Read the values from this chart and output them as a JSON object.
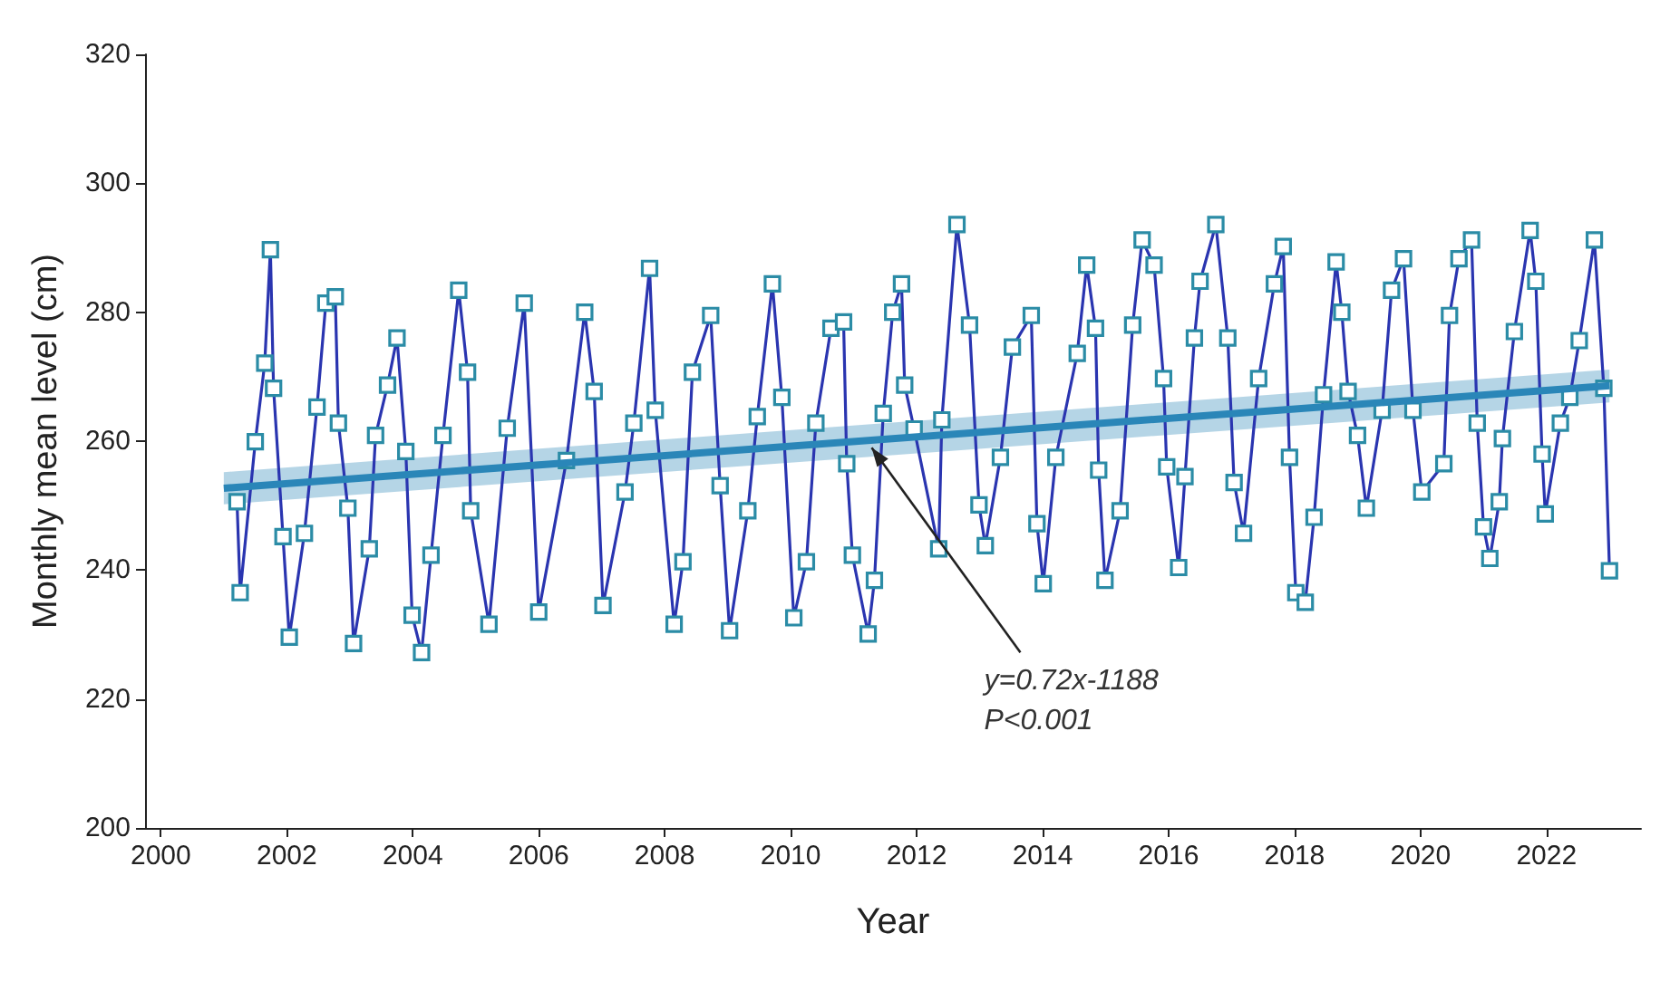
{
  "chart_data": {
    "type": "line",
    "xlabel": "Year",
    "ylabel": "Monthly mean level (cm)",
    "xlim": [
      1999.75,
      2023.5
    ],
    "xticks": [
      2000,
      2002,
      2004,
      2006,
      2008,
      2010,
      2012,
      2014,
      2016,
      2018,
      2020,
      2022
    ],
    "ylim": [
      200,
      320
    ],
    "yticks": [
      200,
      220,
      240,
      260,
      280,
      300,
      320
    ],
    "grid": false,
    "marker": "square",
    "line_style": "solid",
    "series": [
      {
        "color": "#2a35b0",
        "x": [
          2001.21,
          2001.26,
          2001.5,
          2001.65,
          2001.74,
          2001.79,
          2001.94,
          2002.04,
          2002.28,
          2002.48,
          2002.62,
          2002.77,
          2002.82,
          2002.97,
          2003.06,
          2003.31,
          2003.41,
          2003.6,
          2003.75,
          2003.89,
          2003.99,
          2004.14,
          2004.29,
          2004.48,
          2004.73,
          2004.87,
          2004.92,
          2005.21,
          2005.5,
          2005.77,
          2006.0,
          2006.44,
          2006.73,
          2006.88,
          2007.02,
          2007.37,
          2007.51,
          2007.76,
          2007.85,
          2008.15,
          2008.29,
          2008.44,
          2008.73,
          2008.88,
          2009.03,
          2009.32,
          2009.47,
          2009.71,
          2009.86,
          2010.05,
          2010.25,
          2010.4,
          2010.64,
          2010.84,
          2010.89,
          2010.98,
          2011.23,
          2011.33,
          2011.47,
          2011.62,
          2011.76,
          2011.81,
          2011.96,
          2012.35,
          2012.4,
          2012.64,
          2012.84,
          2012.99,
          2013.09,
          2013.33,
          2013.52,
          2013.82,
          2013.91,
          2014.01,
          2014.21,
          2014.55,
          2014.7,
          2014.84,
          2014.89,
          2014.99,
          2015.23,
          2015.43,
          2015.58,
          2015.77,
          2015.92,
          2015.97,
          2016.16,
          2016.26,
          2016.41,
          2016.5,
          2016.75,
          2016.94,
          2017.04,
          2017.19,
          2017.43,
          2017.68,
          2017.82,
          2017.92,
          2018.02,
          2018.17,
          2018.31,
          2018.46,
          2018.66,
          2018.75,
          2018.85,
          2019.0,
          2019.14,
          2019.39,
          2019.54,
          2019.73,
          2019.88,
          2020.02,
          2020.37,
          2020.46,
          2020.61,
          2020.81,
          2020.9,
          2021.0,
          2021.1,
          2021.25,
          2021.3,
          2021.49,
          2021.74,
          2021.83,
          2021.93,
          2021.98,
          2022.22,
          2022.37,
          2022.52,
          2022.76,
          2022.91,
          2023.0
        ],
        "values": [
          250.6,
          236.5,
          259.9,
          272.1,
          289.7,
          268.2,
          245.2,
          229.6,
          245.7,
          265.3,
          281.4,
          282.4,
          262.8,
          249.6,
          228.6,
          243.3,
          260.9,
          268.7,
          276,
          258.4,
          233,
          227.2,
          242.3,
          260.9,
          283.4,
          270.7,
          249.2,
          231.6,
          262,
          281.4,
          233.5,
          257,
          280,
          267.7,
          234.5,
          252.1,
          262.8,
          286.8,
          264.8,
          231.6,
          241.3,
          270.7,
          279.5,
          253.1,
          230.6,
          249.2,
          263.8,
          284.4,
          266.8,
          232.6,
          241.3,
          262.8,
          277.5,
          278.5,
          256.5,
          242.3,
          230.1,
          238.4,
          264.3,
          280,
          284.4,
          268.7,
          261.9,
          243.3,
          263.3,
          293.6,
          278,
          250.1,
          243.8,
          257.5,
          274.6,
          279.5,
          247.2,
          237.9,
          257.5,
          273.6,
          287.3,
          277.5,
          255.5,
          238.4,
          249.2,
          278,
          291.2,
          287.3,
          269.7,
          256,
          240.4,
          254.5,
          276,
          284.8,
          293.6,
          276,
          253.6,
          245.7,
          269.7,
          284.4,
          290.2,
          257.5,
          236.5,
          235,
          248.2,
          267.2,
          287.8,
          280,
          267.7,
          260.9,
          249.6,
          264.8,
          283.4,
          288.3,
          264.8,
          252.1,
          256.5,
          279.5,
          288.3,
          291.2,
          262.8,
          246.7,
          241.8,
          250.6,
          260.4,
          277,
          292.7,
          284.8,
          258,
          248.7,
          262.8,
          266.8,
          275.6,
          291.2,
          268.2,
          239.9
        ]
      },
      {
        "type": "line",
        "color": "#2a86b8",
        "marker": "none",
        "x": [
          2001,
          2023
        ],
        "values": [
          252.7,
          268.6
        ],
        "lower": [
          250.2,
          266.0
        ],
        "upper": [
          255.2,
          271.1
        ]
      }
    ],
    "annotations": [
      {
        "text": "y=0.72x-1188",
        "x": 2011.2,
        "y": 260.1
      },
      "P<0.001"
    ]
  }
}
